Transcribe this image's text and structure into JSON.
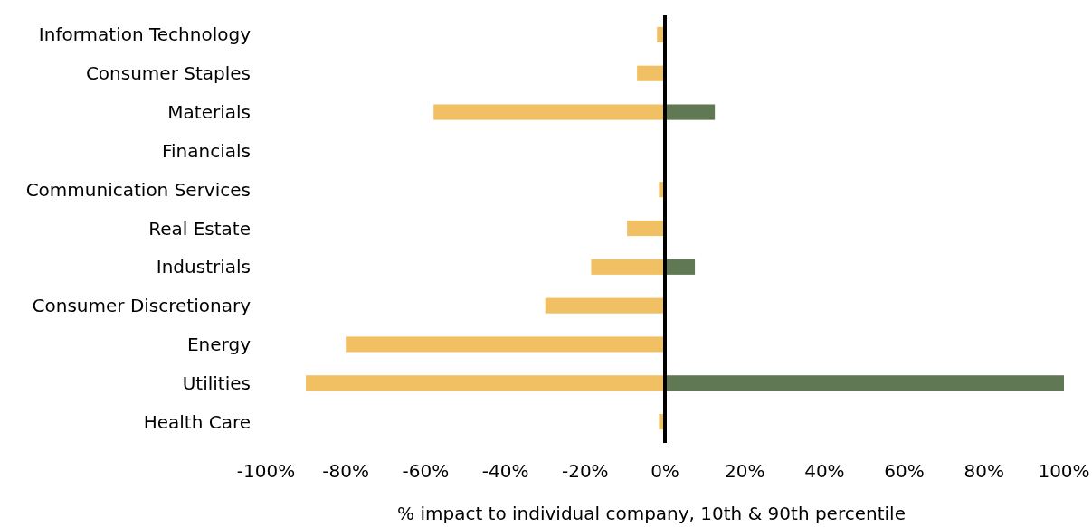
{
  "chart_data": {
    "type": "bar",
    "orientation": "horizontal",
    "xlabel": "% impact to individual company, 10th & 90th percentile",
    "categories": [
      "Information Technology",
      "Consumer Staples",
      "Materials",
      "Financials",
      "Communication Services",
      "Real Estate",
      "Industrials",
      "Consumer Discretionary",
      "Energy",
      "Utilities",
      "Health Care"
    ],
    "series": [
      {
        "color": "#f0c063",
        "values": [
          -2,
          -7,
          -58,
          null,
          -1.5,
          -9.5,
          -18.5,
          -30,
          -80,
          -90,
          -1.5
        ]
      },
      {
        "color": "#607853",
        "values": [
          null,
          null,
          12.5,
          null,
          null,
          null,
          7.5,
          null,
          null,
          100,
          null
        ]
      }
    ],
    "xlim": [
      -100,
      100
    ],
    "xticks": [
      {
        "value": -100,
        "label": "-100%"
      },
      {
        "value": -80,
        "label": "-80%"
      },
      {
        "value": -60,
        "label": "-60%"
      },
      {
        "value": -40,
        "label": "-40%"
      },
      {
        "value": -20,
        "label": "-20%"
      },
      {
        "value": 0,
        "label": "0%"
      },
      {
        "value": 20,
        "label": "20%"
      },
      {
        "value": 40,
        "label": "40%"
      },
      {
        "value": 60,
        "label": "60%"
      },
      {
        "value": 80,
        "label": "80%"
      },
      {
        "value": 100,
        "label": "100%"
      }
    ],
    "ref_lines": [
      {
        "axis": "x",
        "value": 0,
        "color": "#000000"
      }
    ]
  }
}
